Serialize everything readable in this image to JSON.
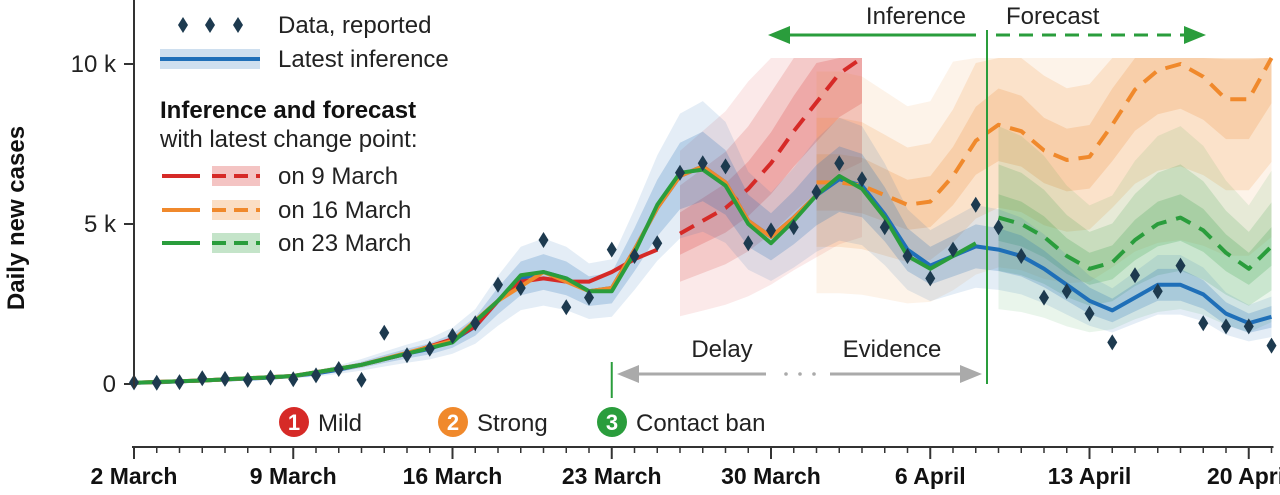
{
  "chart_data": {
    "type": "line",
    "ylabel": "Daily new cases",
    "y_ticks": [
      {
        "value": 0,
        "label": "0"
      },
      {
        "value": 5000,
        "label": "5 k"
      },
      {
        "value": 10000,
        "label": "10 k"
      }
    ],
    "ylim": [
      0,
      11500
    ],
    "x_ticks": [
      {
        "day": 0,
        "label": "2 March"
      },
      {
        "day": 7,
        "label": "9 March"
      },
      {
        "day": 14,
        "label": "16 March"
      },
      {
        "day": 21,
        "label": "23 March"
      },
      {
        "day": 28,
        "label": "30 March"
      },
      {
        "day": 35,
        "label": "6 April"
      },
      {
        "day": 42,
        "label": "13 April"
      },
      {
        "day": 49,
        "label": "20 April"
      }
    ],
    "x_unit": "days from 2 March",
    "xlim": [
      0,
      50
    ],
    "data_reported": {
      "name": "Data, reported",
      "points": [
        [
          0,
          50
        ],
        [
          1,
          40
        ],
        [
          2,
          60
        ],
        [
          3,
          180
        ],
        [
          4,
          160
        ],
        [
          5,
          130
        ],
        [
          6,
          200
        ],
        [
          7,
          150
        ],
        [
          8,
          270
        ],
        [
          9,
          470
        ],
        [
          10,
          130
        ],
        [
          11,
          1600
        ],
        [
          12,
          900
        ],
        [
          13,
          1100
        ],
        [
          14,
          1500
        ],
        [
          15,
          1900
        ],
        [
          16,
          3100
        ],
        [
          17,
          3000
        ],
        [
          18,
          4500
        ],
        [
          19,
          2400
        ],
        [
          20,
          2700
        ],
        [
          21,
          4200
        ],
        [
          22,
          4000
        ],
        [
          23,
          4400
        ],
        [
          24,
          6600
        ],
        [
          25,
          6900
        ],
        [
          26,
          6800
        ],
        [
          27,
          4400
        ],
        [
          28,
          4800
        ],
        [
          29,
          4900
        ],
        [
          30,
          6000
        ],
        [
          31,
          6900
        ],
        [
          32,
          6400
        ],
        [
          33,
          4900
        ],
        [
          34,
          4000
        ],
        [
          35,
          3300
        ],
        [
          36,
          4200
        ],
        [
          37,
          5600
        ],
        [
          38,
          4900
        ],
        [
          39,
          4000
        ],
        [
          40,
          2700
        ],
        [
          41,
          2900
        ],
        [
          42,
          2200
        ],
        [
          43,
          1300
        ],
        [
          44,
          3400
        ],
        [
          45,
          2900
        ],
        [
          46,
          3700
        ],
        [
          47,
          1900
        ],
        [
          48,
          1800
        ],
        [
          49,
          1800
        ],
        [
          50,
          1200
        ]
      ]
    },
    "series": [
      {
        "name": "Latest inference",
        "color": "#1f6fb8",
        "inference": [
          [
            0,
            40
          ],
          [
            1,
            50
          ],
          [
            2,
            80
          ],
          [
            3,
            110
          ],
          [
            4,
            140
          ],
          [
            5,
            170
          ],
          [
            6,
            200
          ],
          [
            7,
            250
          ],
          [
            8,
            330
          ],
          [
            9,
            450
          ],
          [
            10,
            600
          ],
          [
            11,
            780
          ],
          [
            12,
            950
          ],
          [
            13,
            1100
          ],
          [
            14,
            1350
          ],
          [
            15,
            1800
          ],
          [
            16,
            2600
          ],
          [
            17,
            3300
          ],
          [
            18,
            3500
          ],
          [
            19,
            3300
          ],
          [
            20,
            2900
          ],
          [
            21,
            3000
          ],
          [
            22,
            4200
          ],
          [
            23,
            5500
          ],
          [
            24,
            6500
          ],
          [
            25,
            6800
          ],
          [
            26,
            6300
          ],
          [
            27,
            5100
          ],
          [
            28,
            4600
          ],
          [
            29,
            5200
          ],
          [
            30,
            5900
          ],
          [
            31,
            6400
          ],
          [
            32,
            6200
          ],
          [
            33,
            5300
          ],
          [
            34,
            4200
          ],
          [
            35,
            3700
          ],
          [
            36,
            4000
          ],
          [
            37,
            4300
          ],
          [
            38,
            4200
          ],
          [
            39,
            4000
          ],
          [
            40,
            3600
          ],
          [
            41,
            3100
          ],
          [
            42,
            2600
          ],
          [
            43,
            2300
          ],
          [
            44,
            2700
          ],
          [
            45,
            3100
          ],
          [
            46,
            3100
          ],
          [
            47,
            2800
          ],
          [
            48,
            2200
          ],
          [
            49,
            1900
          ],
          [
            50,
            2100
          ]
        ]
      },
      {
        "name": "on 9 March",
        "color": "#d62a27",
        "inference": [
          [
            0,
            40
          ],
          [
            3,
            110
          ],
          [
            7,
            250
          ],
          [
            10,
            600
          ],
          [
            12,
            950
          ],
          [
            14,
            1400
          ],
          [
            15,
            1800
          ],
          [
            16,
            2600
          ],
          [
            17,
            3200
          ],
          [
            18,
            3300
          ],
          [
            19,
            3200
          ],
          [
            20,
            3200
          ],
          [
            21,
            3500
          ],
          [
            22,
            3900
          ],
          [
            23,
            4200
          ]
        ],
        "forecast": [
          [
            24,
            4700
          ],
          [
            25,
            5100
          ],
          [
            26,
            5500
          ],
          [
            27,
            6100
          ],
          [
            28,
            6900
          ],
          [
            29,
            7900
          ],
          [
            30,
            8800
          ],
          [
            31,
            9700
          ],
          [
            32,
            10200
          ]
        ]
      },
      {
        "name": "on 16 March",
        "color": "#f0892c",
        "inference": [
          [
            0,
            40
          ],
          [
            3,
            110
          ],
          [
            7,
            250
          ],
          [
            10,
            600
          ],
          [
            14,
            1350
          ],
          [
            16,
            2600
          ],
          [
            18,
            3500
          ],
          [
            20,
            2900
          ],
          [
            21,
            3000
          ],
          [
            22,
            4200
          ],
          [
            23,
            5500
          ],
          [
            24,
            6500
          ],
          [
            25,
            6800
          ],
          [
            26,
            6300
          ],
          [
            27,
            5100
          ],
          [
            28,
            4600
          ],
          [
            29,
            5200
          ],
          [
            30,
            5900
          ]
        ],
        "forecast": [
          [
            30,
            6300
          ],
          [
            31,
            6300
          ],
          [
            32,
            6200
          ],
          [
            33,
            5900
          ],
          [
            34,
            5600
          ],
          [
            35,
            5700
          ],
          [
            36,
            6500
          ],
          [
            37,
            7600
          ],
          [
            38,
            8100
          ],
          [
            39,
            7900
          ],
          [
            40,
            7300
          ],
          [
            41,
            7000
          ],
          [
            42,
            7100
          ],
          [
            43,
            8100
          ],
          [
            44,
            9200
          ],
          [
            45,
            9800
          ],
          [
            46,
            10000
          ],
          [
            47,
            9600
          ],
          [
            48,
            8900
          ],
          [
            49,
            8900
          ],
          [
            50,
            10200
          ]
        ]
      },
      {
        "name": "on 23 March",
        "color": "#2a9d3c",
        "inference": [
          [
            0,
            40
          ],
          [
            3,
            110
          ],
          [
            7,
            250
          ],
          [
            10,
            600
          ],
          [
            14,
            1300
          ],
          [
            16,
            2600
          ],
          [
            17,
            3400
          ],
          [
            18,
            3500
          ],
          [
            19,
            3300
          ],
          [
            20,
            2900
          ],
          [
            21,
            2900
          ],
          [
            22,
            4100
          ],
          [
            23,
            5600
          ],
          [
            24,
            6600
          ],
          [
            25,
            6700
          ],
          [
            26,
            6200
          ],
          [
            27,
            5000
          ],
          [
            28,
            4400
          ],
          [
            29,
            5100
          ],
          [
            30,
            5900
          ],
          [
            31,
            6500
          ],
          [
            32,
            6100
          ],
          [
            33,
            5200
          ],
          [
            34,
            4000
          ],
          [
            35,
            3600
          ],
          [
            36,
            4000
          ],
          [
            37,
            4400
          ]
        ],
        "forecast": [
          [
            38,
            5200
          ],
          [
            39,
            5000
          ],
          [
            40,
            4600
          ],
          [
            41,
            4000
          ],
          [
            42,
            3600
          ],
          [
            43,
            3800
          ],
          [
            44,
            4500
          ],
          [
            45,
            5000
          ],
          [
            46,
            5200
          ],
          [
            47,
            4800
          ],
          [
            48,
            4100
          ],
          [
            49,
            3600
          ],
          [
            50,
            4300
          ]
        ]
      }
    ],
    "legend": {
      "data_label": "Data, reported",
      "latest_label": "Latest inference",
      "heading": "Inference and forecast",
      "subheading": "with latest change point:",
      "entries": [
        "on 9 March",
        "on 16 March",
        "on 23 March"
      ]
    },
    "annotations": {
      "inference": "Inference",
      "forecast": "Forecast",
      "delay": "Delay",
      "evidence": "Evidence",
      "change_points": [
        {
          "day": 7,
          "number": "1",
          "label": "Mild",
          "color": "#d62a27"
        },
        {
          "day": 14,
          "number": "2",
          "label": "Strong",
          "color": "#f0892c"
        },
        {
          "day": 21,
          "number": "3",
          "label": "Contact ban",
          "color": "#2a9d3c"
        }
      ]
    },
    "grid": false
  }
}
